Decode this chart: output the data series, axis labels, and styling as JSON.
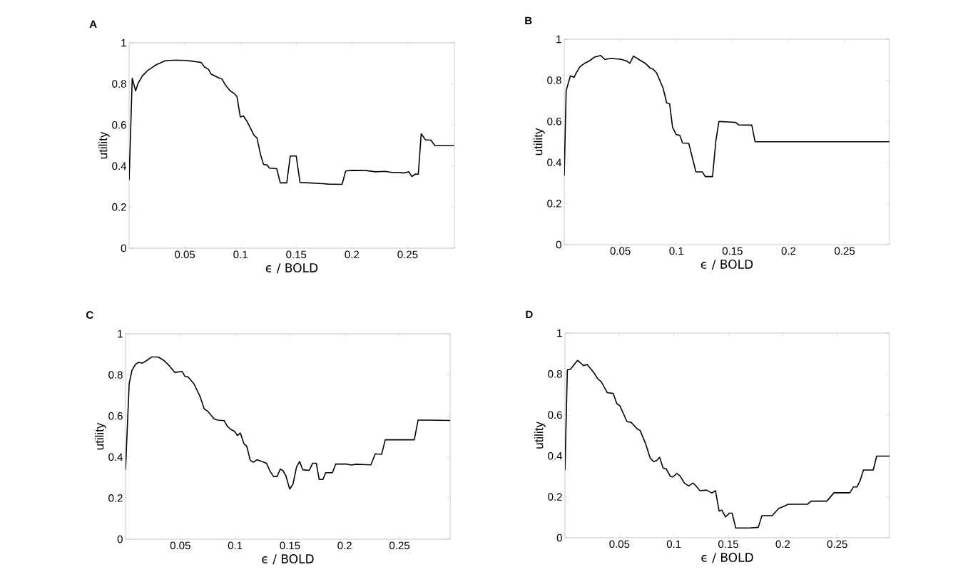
{
  "chart_data": [
    {
      "type": "line",
      "title": "A",
      "xlabel": "ϵ / BOLD",
      "ylabel": "utility",
      "xlim": [
        0,
        0.292
      ],
      "ylim": [
        0,
        1
      ],
      "xticks": [
        0.05,
        0.1,
        0.15,
        0.2,
        0.25
      ],
      "yticks": [
        0,
        0.2,
        0.4,
        0.6,
        0.8,
        1
      ],
      "line_style": "solid",
      "series": [
        {
          "color": "#000000",
          "x": [
            0,
            0.0028,
            0.0058,
            0.0081,
            0.0118,
            0.0171,
            0.0246,
            0.0327,
            0.0417,
            0.0502,
            0.0577,
            0.0647,
            0.0677,
            0.0712,
            0.0737,
            0.078,
            0.0812,
            0.0833,
            0.0865,
            0.0908,
            0.0947,
            0.0968,
            0.0998,
            0.1026,
            0.1058,
            0.109,
            0.1122,
            0.1147,
            0.1182,
            0.1207,
            0.1239,
            0.126,
            0.1325,
            0.1357,
            0.1415,
            0.1447,
            0.15,
            0.1534,
            0.1613,
            0.1741,
            0.1784,
            0.1912,
            0.1944,
            0.1998,
            0.2126,
            0.2212,
            0.2297,
            0.2361,
            0.2425,
            0.2468,
            0.2511,
            0.2538,
            0.257,
            0.2596,
            0.2622,
            0.266,
            0.2709,
            0.2746,
            0.2917
          ],
          "values": [
            0.332,
            0.827,
            0.766,
            0.803,
            0.838,
            0.867,
            0.894,
            0.913,
            0.916,
            0.914,
            0.91,
            0.904,
            0.882,
            0.871,
            0.847,
            0.836,
            0.827,
            0.824,
            0.794,
            0.766,
            0.751,
            0.738,
            0.639,
            0.644,
            0.618,
            0.584,
            0.549,
            0.538,
            0.451,
            0.408,
            0.405,
            0.39,
            0.387,
            0.318,
            0.318,
            0.449,
            0.449,
            0.32,
            0.318,
            0.314,
            0.312,
            0.311,
            0.376,
            0.379,
            0.378,
            0.372,
            0.374,
            0.369,
            0.369,
            0.366,
            0.372,
            0.349,
            0.361,
            0.36,
            0.557,
            0.528,
            0.526,
            0.499,
            0.499
          ]
        }
      ]
    },
    {
      "type": "line",
      "title": "B",
      "xlabel": "ϵ / BOLD",
      "ylabel": "utility",
      "xlim": [
        0,
        0.29
      ],
      "ylim": [
        0,
        1
      ],
      "xticks": [
        0.05,
        0.1,
        0.15,
        0.2,
        0.25
      ],
      "yticks": [
        0,
        0.2,
        0.4,
        0.6,
        0.8,
        1
      ],
      "line_style": "solid",
      "series": [
        {
          "color": "#000000",
          "x": [
            0,
            0.0017,
            0.0055,
            0.0087,
            0.0108,
            0.014,
            0.0182,
            0.0225,
            0.0267,
            0.0324,
            0.0362,
            0.0415,
            0.05,
            0.0553,
            0.0585,
            0.0617,
            0.0669,
            0.0722,
            0.0765,
            0.0792,
            0.0822,
            0.085,
            0.0881,
            0.0913,
            0.0939,
            0.0966,
            0.0998,
            0.103,
            0.1055,
            0.111,
            0.1174,
            0.1231,
            0.1258,
            0.1322,
            0.1352,
            0.1379,
            0.1464,
            0.1528,
            0.1555,
            0.1672,
            0.1701,
            0.2898
          ],
          "values": [
            0.336,
            0.75,
            0.822,
            0.814,
            0.837,
            0.866,
            0.883,
            0.895,
            0.912,
            0.921,
            0.902,
            0.906,
            0.903,
            0.895,
            0.883,
            0.918,
            0.9,
            0.883,
            0.86,
            0.854,
            0.837,
            0.802,
            0.762,
            0.69,
            0.686,
            0.571,
            0.536,
            0.532,
            0.495,
            0.493,
            0.354,
            0.354,
            0.331,
            0.331,
            0.507,
            0.6,
            0.597,
            0.595,
            0.583,
            0.582,
            0.501,
            0.501
          ]
        }
      ]
    },
    {
      "type": "line",
      "title": "C",
      "xlabel": "ϵ / BOLD",
      "ylabel": "utility",
      "xlim": [
        0,
        0.2962
      ],
      "ylim": [
        0,
        1
      ],
      "xticks": [
        0.05,
        0.1,
        0.15,
        0.2,
        0.25
      ],
      "yticks": [
        0,
        0.2,
        0.4,
        0.6,
        0.8,
        1
      ],
      "line_style": "solid",
      "series": [
        {
          "color": "#000000",
          "x": [
            0,
            0.0033,
            0.0059,
            0.0092,
            0.012,
            0.0153,
            0.019,
            0.0237,
            0.0298,
            0.0353,
            0.0396,
            0.045,
            0.0515,
            0.0543,
            0.0569,
            0.0624,
            0.0682,
            0.0717,
            0.0754,
            0.0808,
            0.0841,
            0.09,
            0.0928,
            0.0961,
            0.0993,
            0.1021,
            0.1047,
            0.108,
            0.1106,
            0.1138,
            0.1167,
            0.1199,
            0.1286,
            0.1318,
            0.1351,
            0.1383,
            0.1411,
            0.1437,
            0.1463,
            0.1498,
            0.1528,
            0.1561,
            0.1589,
            0.1617,
            0.1676,
            0.1708,
            0.1741,
            0.1767,
            0.1801,
            0.1827,
            0.1888,
            0.1918,
            0.2012,
            0.2066,
            0.2099,
            0.2239,
            0.2279,
            0.2337,
            0.237,
            0.2635,
            0.267,
            0.275,
            0.2962
          ],
          "values": [
            0.338,
            0.757,
            0.823,
            0.852,
            0.861,
            0.857,
            0.869,
            0.887,
            0.887,
            0.869,
            0.846,
            0.812,
            0.817,
            0.792,
            0.791,
            0.757,
            0.692,
            0.635,
            0.621,
            0.586,
            0.58,
            0.577,
            0.551,
            0.534,
            0.526,
            0.505,
            0.517,
            0.465,
            0.453,
            0.384,
            0.375,
            0.387,
            0.37,
            0.332,
            0.305,
            0.305,
            0.341,
            0.334,
            0.309,
            0.244,
            0.268,
            0.353,
            0.378,
            0.338,
            0.335,
            0.37,
            0.37,
            0.291,
            0.291,
            0.324,
            0.324,
            0.366,
            0.366,
            0.361,
            0.365,
            0.362,
            0.416,
            0.413,
            0.484,
            0.484,
            0.58,
            0.58,
            0.578
          ]
        }
      ]
    },
    {
      "type": "line",
      "title": "D",
      "xlabel": "ϵ / BOLD",
      "ylabel": "utility",
      "xlim": [
        0,
        0.298
      ],
      "ylim": [
        0,
        1
      ],
      "xticks": [
        0.05,
        0.1,
        0.15,
        0.2,
        0.25
      ],
      "yticks": [
        0,
        0.2,
        0.4,
        0.6,
        0.8,
        1
      ],
      "line_style": "solid",
      "series": [
        {
          "color": "#000000",
          "x": [
            0,
            0.0022,
            0.005,
            0.0116,
            0.017,
            0.0203,
            0.0258,
            0.0301,
            0.0334,
            0.0389,
            0.0443,
            0.0476,
            0.0504,
            0.057,
            0.0607,
            0.0661,
            0.069,
            0.0738,
            0.0782,
            0.0814,
            0.0843,
            0.0869,
            0.0901,
            0.093,
            0.0967,
            0.0989,
            0.1028,
            0.1055,
            0.1098,
            0.1135,
            0.1175,
            0.1197,
            0.124,
            0.1299,
            0.1349,
            0.1382,
            0.1415,
            0.1441,
            0.1474,
            0.1509,
            0.1535,
            0.1568,
            0.1699,
            0.1775,
            0.1808,
            0.1902,
            0.1961,
            0.2016,
            0.2048,
            0.2227,
            0.226,
            0.2404,
            0.247,
            0.2616,
            0.2648,
            0.2681,
            0.271,
            0.274,
            0.283,
            0.2862,
            0.298
          ],
          "values": [
            0.33,
            0.82,
            0.823,
            0.867,
            0.841,
            0.847,
            0.812,
            0.777,
            0.762,
            0.709,
            0.705,
            0.655,
            0.645,
            0.567,
            0.564,
            0.533,
            0.524,
            0.463,
            0.39,
            0.372,
            0.378,
            0.393,
            0.341,
            0.337,
            0.3,
            0.297,
            0.314,
            0.303,
            0.267,
            0.253,
            0.267,
            0.257,
            0.23,
            0.233,
            0.219,
            0.23,
            0.131,
            0.135,
            0.102,
            0.12,
            0.12,
            0.048,
            0.048,
            0.051,
            0.108,
            0.108,
            0.143,
            0.155,
            0.164,
            0.164,
            0.179,
            0.179,
            0.22,
            0.22,
            0.248,
            0.248,
            0.28,
            0.331,
            0.331,
            0.399,
            0.399
          ]
        }
      ]
    }
  ]
}
